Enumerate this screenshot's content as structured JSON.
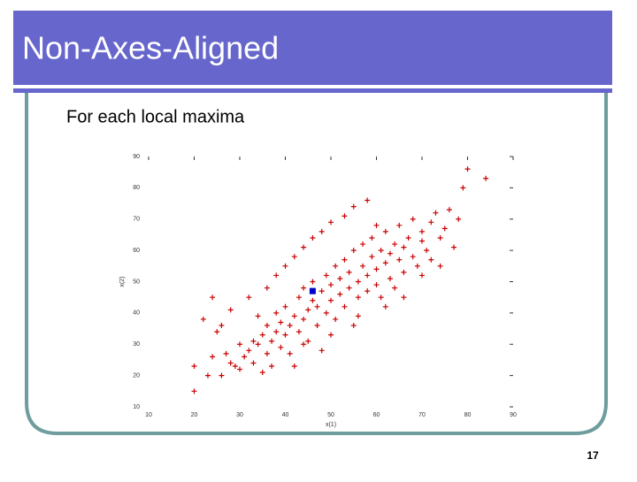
{
  "slide": {
    "title": "Non-Axes-Aligned",
    "bullet": "For each local maxima",
    "page_number": "17"
  },
  "chart_data": {
    "type": "scatter",
    "xlabel": "x(1)",
    "ylabel": "x(2)",
    "xlim": [
      10,
      90
    ],
    "ylim": [
      10,
      90
    ],
    "xticks": [
      10,
      20,
      30,
      40,
      50,
      60,
      70,
      80,
      90
    ],
    "yticks": [
      10,
      20,
      30,
      40,
      50,
      60,
      70,
      80,
      90
    ],
    "series": [
      {
        "color": "#cc0000",
        "marker": "plus",
        "x": [
          20,
          20,
          23,
          24,
          26,
          27,
          28,
          29,
          30,
          31,
          32,
          33,
          34,
          35,
          35,
          36,
          36,
          37,
          38,
          38,
          39,
          39,
          40,
          40,
          41,
          41,
          42,
          42,
          43,
          43,
          44,
          44,
          45,
          45,
          46,
          46,
          47,
          47,
          48,
          48,
          49,
          49,
          50,
          50,
          51,
          51,
          52,
          52,
          53,
          53,
          54,
          54,
          55,
          55,
          56,
          56,
          57,
          57,
          58,
          58,
          59,
          59,
          60,
          60,
          61,
          61,
          62,
          62,
          63,
          63,
          64,
          64,
          65,
          65,
          66,
          66,
          67,
          68,
          68,
          69,
          70,
          70,
          71,
          72,
          72,
          73,
          74,
          75,
          76,
          77,
          78,
          79,
          80,
          84,
          22,
          25,
          28,
          30,
          32,
          34,
          36,
          38,
          40,
          42,
          44,
          46,
          48,
          50,
          53,
          55,
          58,
          60,
          33,
          37,
          44,
          50,
          56,
          62,
          66,
          70,
          74,
          24,
          26
        ],
        "values": [
          23,
          15,
          20,
          26,
          20,
          27,
          24,
          23,
          22,
          26,
          28,
          31,
          30,
          21,
          33,
          27,
          36,
          31,
          34,
          40,
          29,
          37,
          33,
          42,
          36,
          27,
          23,
          39,
          45,
          34,
          38,
          48,
          41,
          31,
          44,
          50,
          36,
          42,
          28,
          47,
          40,
          52,
          44,
          49,
          38,
          55,
          46,
          51,
          42,
          57,
          48,
          53,
          36,
          60,
          50,
          45,
          55,
          62,
          47,
          52,
          58,
          64,
          49,
          54,
          60,
          45,
          56,
          66,
          51,
          59,
          62,
          48,
          57,
          68,
          53,
          61,
          64,
          58,
          70,
          55,
          63,
          66,
          60,
          69,
          57,
          72,
          64,
          67,
          73,
          61,
          70,
          80,
          86,
          83,
          38,
          34,
          41,
          30,
          45,
          39,
          48,
          52,
          55,
          58,
          61,
          64,
          66,
          69,
          71,
          74,
          76,
          68,
          24,
          23,
          30,
          33,
          39,
          42,
          45,
          52,
          55,
          45,
          36
        ]
      },
      {
        "color": "#0000cc",
        "marker": "square",
        "x": [
          46
        ],
        "values": [
          47
        ]
      }
    ]
  }
}
